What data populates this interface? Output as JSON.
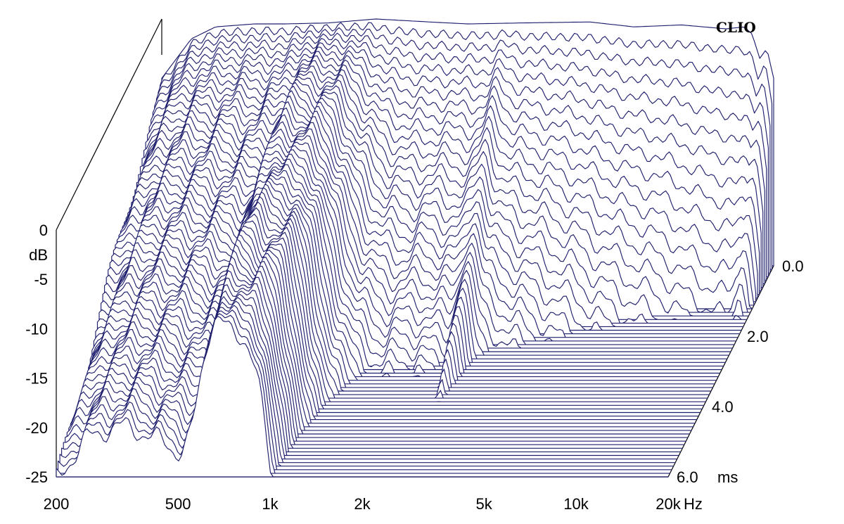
{
  "chart_data": {
    "type": "waterfall",
    "title": "",
    "watermark": "CLIO",
    "xlabel": "Hz",
    "ylabel": "dB",
    "zlabel": "ms",
    "x_scale": "log",
    "xlim": [
      200,
      20000
    ],
    "ylim": [
      -25,
      0
    ],
    "zlim": [
      0,
      6
    ],
    "x_ticks": [
      {
        "value": 200,
        "label": "200"
      },
      {
        "value": 500,
        "label": "500"
      },
      {
        "value": 1000,
        "label": "1k"
      },
      {
        "value": 2000,
        "label": "2k"
      },
      {
        "value": 5000,
        "label": "5k"
      },
      {
        "value": 10000,
        "label": "10k"
      },
      {
        "value": 20000,
        "label": "20k"
      }
    ],
    "y_ticks": [
      {
        "value": 0,
        "label": "0"
      },
      {
        "value": -5,
        "label": "-5"
      },
      {
        "value": -10,
        "label": "-10"
      },
      {
        "value": -15,
        "label": "-15"
      },
      {
        "value": -20,
        "label": "-20"
      },
      {
        "value": -25,
        "label": "-25"
      }
    ],
    "z_ticks": [
      {
        "value": 0,
        "label": "0.0"
      },
      {
        "value": 2,
        "label": "2.0"
      },
      {
        "value": 4,
        "label": "4.0"
      },
      {
        "value": 6,
        "label": "6.0"
      }
    ],
    "slice_count": 60,
    "initial_response": [
      {
        "hz": 200,
        "db": -6
      },
      {
        "hz": 250,
        "db": -2
      },
      {
        "hz": 300,
        "db": -0.8
      },
      {
        "hz": 400,
        "db": -0.5
      },
      {
        "hz": 500,
        "db": -0.5
      },
      {
        "hz": 700,
        "db": -0.4
      },
      {
        "hz": 1000,
        "db": 0
      },
      {
        "hz": 1500,
        "db": -0.3
      },
      {
        "hz": 2000,
        "db": -0.5
      },
      {
        "hz": 3000,
        "db": -0.4
      },
      {
        "hz": 5000,
        "db": -0.3
      },
      {
        "hz": 7000,
        "db": -0.8
      },
      {
        "hz": 10000,
        "db": -0.6
      },
      {
        "hz": 14000,
        "db": -1
      },
      {
        "hz": 16000,
        "db": -0.8
      },
      {
        "hz": 17000,
        "db": -1.5
      },
      {
        "hz": 18000,
        "db": -4
      },
      {
        "hz": 19000,
        "db": -3
      },
      {
        "hz": 20000,
        "db": -6
      }
    ],
    "color": "#1f1f6e",
    "grid": false,
    "legend": "none"
  }
}
